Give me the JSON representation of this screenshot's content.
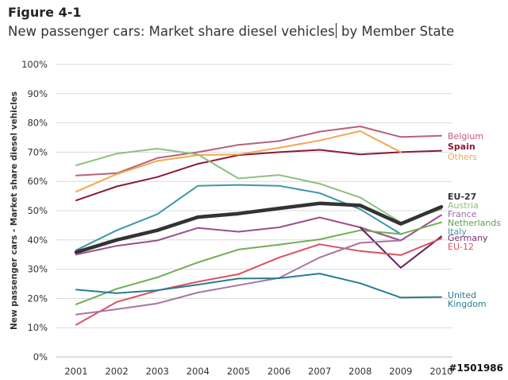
{
  "figure": {
    "label": "Figure 4-1",
    "title_part1": "New passenger cars: Market share diesel vehicles",
    "title_part2": " by Member State"
  },
  "watermark": "#1501986",
  "chart_data": {
    "type": "line",
    "ylabel": "New passenger cars - Market share diesel vehicles",
    "xlabel": "",
    "x": [
      2001,
      2002,
      2003,
      2004,
      2005,
      2006,
      2007,
      2008,
      2009,
      2010
    ],
    "ylim": [
      0,
      100
    ],
    "yticks": [
      0,
      10,
      20,
      30,
      40,
      50,
      60,
      70,
      80,
      90,
      100
    ],
    "ytick_labels": [
      "0%",
      "10%",
      "20%",
      "30%",
      "40%",
      "50%",
      "60%",
      "70%",
      "80%",
      "90%",
      "100%"
    ],
    "grid": "horizontal",
    "legend": "right (labels at line ends)",
    "series": [
      {
        "name": "Belgium",
        "color": "#b5617a",
        "width": 2,
        "values": [
          62,
          62.8,
          68,
          70,
          72.5,
          73.8,
          77,
          78.8,
          75.2,
          75.6
        ]
      },
      {
        "name": "Spain",
        "color": "#8b1a3a",
        "width": 2,
        "values": [
          53.5,
          58.3,
          61.5,
          66,
          69,
          70,
          70.8,
          69.2,
          70,
          70.5
        ]
      },
      {
        "name": "Others",
        "color": "#f0a850",
        "width": 2,
        "values": [
          56.5,
          62.5,
          67,
          69,
          69.2,
          71.5,
          74,
          77.2,
          70,
          null
        ]
      },
      {
        "name": "Austria",
        "color": "#8fbf7f",
        "width": 2,
        "values": [
          65.5,
          69.5,
          71.2,
          69.2,
          61,
          62.2,
          59.2,
          54.5,
          46,
          50.5
        ]
      },
      {
        "name": "Italy",
        "color": "#3e97a8",
        "width": 2,
        "values": [
          36.5,
          43.3,
          48.8,
          58.5,
          58.8,
          58.5,
          56,
          50.5,
          42,
          null
        ]
      },
      {
        "name": "EU-27",
        "color": "#333333",
        "width": 4.5,
        "values": [
          35.8,
          40,
          43.3,
          47.8,
          49,
          50.8,
          52.5,
          51.8,
          45.5,
          51.3
        ]
      },
      {
        "name": "France",
        "color": "#9a4f8a",
        "width": 2,
        "values": [
          35,
          38,
          39.8,
          44.1,
          42.8,
          44.3,
          47.7,
          44.3,
          39.8,
          48.5
        ]
      },
      {
        "name": "Netherlands",
        "color": "#6fae55",
        "width": 2,
        "values": [
          18,
          23.3,
          27.2,
          32.3,
          36.7,
          38.4,
          40.2,
          43.3,
          42,
          46
        ]
      },
      {
        "name": "Germany",
        "color": "#6a1e5e",
        "width": 2,
        "values": [
          34.7,
          null,
          null,
          null,
          null,
          null,
          null,
          44.3,
          30.5,
          41.2
        ]
      },
      {
        "name": "EU-12",
        "color": "#d9525e",
        "width": 2,
        "values": [
          11,
          18.8,
          22.7,
          25.7,
          28.3,
          34,
          38.5,
          36.2,
          34.8,
          40.5
        ]
      },
      {
        "name": "Germany (lower)",
        "color": "#a874a3",
        "width": 2,
        "values": [
          14.5,
          16.3,
          18.3,
          22,
          24.5,
          27,
          34,
          39,
          39.8,
          null
        ]
      },
      {
        "name": "United Kingdom",
        "color": "#287c94",
        "width": 2,
        "values": [
          23,
          21.8,
          22.8,
          24.7,
          26.8,
          26.9,
          28.5,
          25.2,
          20.3,
          20.5
        ]
      }
    ],
    "end_labels": [
      {
        "text": "Belgium",
        "color": "#c05a78",
        "bold": false
      },
      {
        "text": "Spain",
        "color": "#8b1a3a",
        "bold": true
      },
      {
        "text": "Others",
        "color": "#f0a850",
        "bold": false
      },
      {
        "text": "EU-27",
        "color": "#333333",
        "bold": true
      },
      {
        "text": "Austria",
        "color": "#8fbf7f",
        "bold": false
      },
      {
        "text": "France",
        "color": "#9a6fa0",
        "bold": false
      },
      {
        "text": "Netherlands",
        "color": "#5ea24a",
        "bold": false
      },
      {
        "text": "Italy",
        "color": "#3e97a8",
        "bold": false
      },
      {
        "text": "Germany",
        "color": "#7a2a70",
        "bold": false
      },
      {
        "text": "EU-12",
        "color": "#d9525e",
        "bold": false
      },
      {
        "text": "United",
        "color": "#287c94",
        "bold": false
      },
      {
        "text": "Kingdom",
        "color": "#287c94",
        "bold": false
      }
    ]
  }
}
